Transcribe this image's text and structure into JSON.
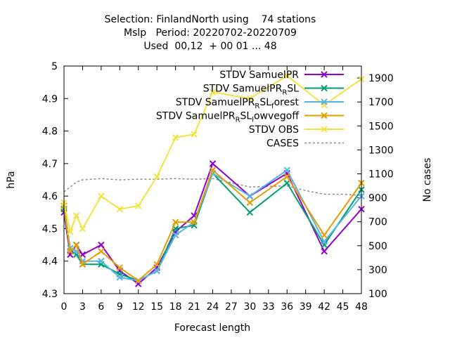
{
  "chart_data": {
    "type": "line",
    "title_lines": [
      "Selection: FinlandNorth using    74 stations",
      "Mslp   Period: 20220702-20220709",
      "Used  00,12  + 00 01 ... 48"
    ],
    "xlabel": "Forecast length",
    "ylabel": "hPa",
    "y2label": "No cases",
    "xlim": [
      0,
      48
    ],
    "ylim": [
      4.3,
      5.0
    ],
    "y2lim": [
      100,
      2000
    ],
    "xticks": [
      0,
      3,
      6,
      9,
      12,
      15,
      18,
      21,
      24,
      27,
      30,
      33,
      36,
      39,
      42,
      45,
      48
    ],
    "yticks": [
      4.3,
      4.4,
      4.5,
      4.6,
      4.7,
      4.8,
      4.9,
      5.0
    ],
    "ytick_labels": [
      "4.3",
      "4.4",
      "4.5",
      "4.6",
      "4.7",
      "4.8",
      "4.9",
      "5"
    ],
    "y2ticks": [
      100,
      300,
      500,
      700,
      900,
      1100,
      1300,
      1500,
      1700,
      1900
    ],
    "legend_position": "top-right",
    "legend": [
      {
        "parts": [
          [
            "STDV SamuelPR",
            ""
          ]
        ]
      },
      {
        "parts": [
          [
            "STDV SamuelPR",
            ""
          ],
          [
            "R",
            "sub"
          ],
          [
            "SL",
            ""
          ]
        ]
      },
      {
        "parts": [
          [
            "STDV SamuelPR",
            ""
          ],
          [
            "R",
            "sub"
          ],
          [
            "SL",
            ""
          ],
          [
            "f",
            "sub"
          ],
          [
            "orest",
            ""
          ]
        ]
      },
      {
        "parts": [
          [
            "STDV SamuelPR",
            ""
          ],
          [
            "R",
            "sub"
          ],
          [
            "SL",
            ""
          ],
          [
            "l",
            "sub"
          ],
          [
            "owvegoff",
            ""
          ]
        ]
      },
      {
        "parts": [
          [
            "STDV OBS",
            ""
          ]
        ]
      },
      {
        "parts": [
          [
            "CASES",
            ""
          ]
        ]
      }
    ],
    "series": [
      {
        "color": "#9400d3",
        "marker": "x",
        "axis": "y",
        "x": [
          0,
          1,
          2,
          3,
          6,
          9,
          12,
          15,
          18,
          21,
          24,
          30,
          36,
          42,
          48
        ],
        "y": [
          4.55,
          4.42,
          4.45,
          4.42,
          4.45,
          4.37,
          4.33,
          4.38,
          4.49,
          4.54,
          4.7,
          4.6,
          4.67,
          4.43,
          4.56
        ]
      },
      {
        "color": "#009e73",
        "marker": "x",
        "axis": "y",
        "x": [
          0,
          1,
          2,
          3,
          6,
          9,
          12,
          15,
          18,
          21,
          24,
          30,
          36,
          42,
          48
        ],
        "y": [
          4.56,
          4.43,
          4.42,
          4.39,
          4.39,
          4.36,
          4.34,
          4.37,
          4.5,
          4.51,
          4.67,
          4.55,
          4.64,
          4.45,
          4.62
        ]
      },
      {
        "color": "#56b4e9",
        "marker": "x",
        "axis": "y",
        "x": [
          0,
          1,
          2,
          3,
          6,
          9,
          12,
          15,
          18,
          21,
          24,
          30,
          36,
          42,
          48
        ],
        "y": [
          4.57,
          4.44,
          4.43,
          4.4,
          4.4,
          4.35,
          4.34,
          4.37,
          4.48,
          4.52,
          4.67,
          4.6,
          4.68,
          4.46,
          4.6
        ]
      },
      {
        "color": "#e69f00",
        "marker": "x",
        "axis": "y",
        "x": [
          0,
          1,
          2,
          3,
          6,
          9,
          12,
          15,
          18,
          21,
          24,
          30,
          36,
          42,
          48
        ],
        "y": [
          4.57,
          4.43,
          4.45,
          4.39,
          4.43,
          4.38,
          4.34,
          4.39,
          4.52,
          4.52,
          4.68,
          4.58,
          4.66,
          4.48,
          4.64
        ]
      },
      {
        "color": "#f0e442",
        "marker": "x",
        "axis": "y",
        "x": [
          0,
          1,
          2,
          3,
          6,
          9,
          12,
          15,
          18,
          21,
          24,
          30,
          36,
          42,
          48
        ],
        "y": [
          4.58,
          4.49,
          4.54,
          4.5,
          4.6,
          4.56,
          4.57,
          4.66,
          4.78,
          4.79,
          4.92,
          4.9,
          4.97,
          4.88,
          4.96
        ]
      },
      {
        "color": "#8c8c8c",
        "marker": "none",
        "dashed": true,
        "axis": "y2",
        "x": [
          0,
          1,
          2,
          3,
          6,
          9,
          12,
          15,
          18,
          21,
          24,
          30,
          36,
          39,
          42,
          45,
          48
        ],
        "y": [
          950,
          990,
          1030,
          1050,
          1060,
          1050,
          1055,
          1055,
          1060,
          1055,
          1060,
          990,
          1000,
          960,
          930,
          930,
          920
        ]
      }
    ]
  }
}
